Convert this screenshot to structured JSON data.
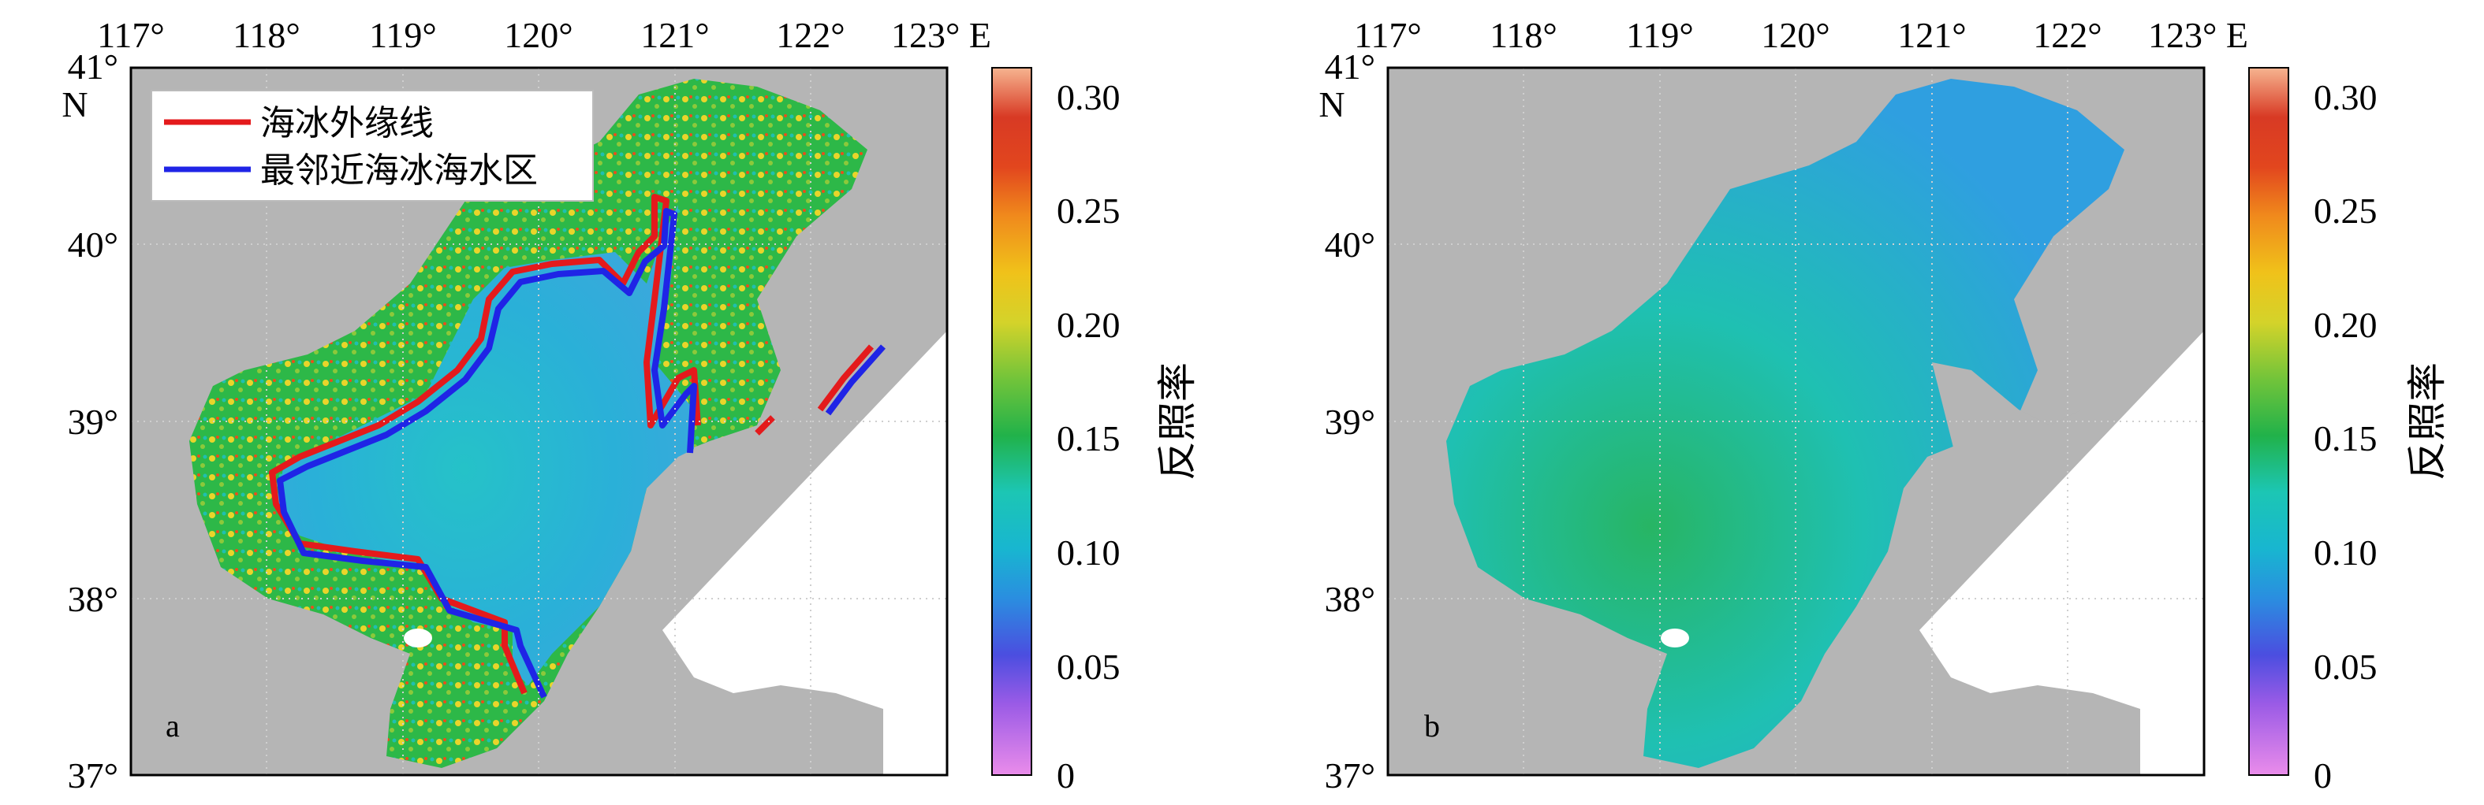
{
  "panels": [
    {
      "letter": "a",
      "legend": {
        "items": [
          {
            "label": "海冰外缘线",
            "color": "#e41a1c"
          },
          {
            "label": "最邻近海冰海水区",
            "color": "#1f24e6"
          }
        ]
      }
    },
    {
      "letter": "b"
    }
  ],
  "axes": {
    "lon_ticks": [
      "117°",
      "118°",
      "119°",
      "120°",
      "121°",
      "122°",
      "123° E"
    ],
    "lat_ticks": [
      "41°",
      "40°",
      "39°",
      "38°",
      "37°"
    ],
    "lat_unit": "N",
    "lon_range": [
      117,
      123
    ],
    "lat_range": [
      37,
      41
    ]
  },
  "colorbar": {
    "label": "反照率",
    "ticks": [
      "0.30",
      "0.25",
      "0.20",
      "0.15",
      "0.10",
      "0.05",
      "0"
    ],
    "range": [
      0,
      0.31
    ],
    "colormap": [
      "#e889e8",
      "#9b5be6",
      "#4b4ee0",
      "#2a8ee0",
      "#18b6d0",
      "#1cc6b4",
      "#21b24a",
      "#72c43a",
      "#d4d32a",
      "#f0c21a",
      "#f08a1c",
      "#e2461e",
      "#d83a24",
      "#f6b490"
    ]
  },
  "colors": {
    "land": "#b5b5b5",
    "no_data": "#ffffff",
    "grid": "#cfcfcf"
  }
}
